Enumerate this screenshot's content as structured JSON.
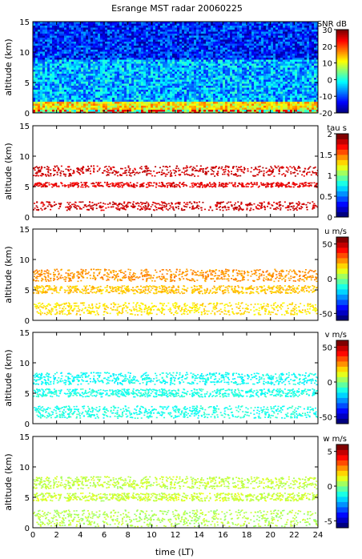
{
  "title": "Esrange MST radar 20060225",
  "xlabel": "time (LT)",
  "chart_data": [
    {
      "type": "heatmap",
      "ylabel": "altitude (km)",
      "xlim": [
        0,
        24
      ],
      "ylim": [
        0,
        15
      ],
      "xticks": [
        0,
        2,
        4,
        6,
        8,
        10,
        12,
        14,
        16,
        18,
        20,
        22,
        24
      ],
      "yticks": [
        0,
        5,
        10,
        15
      ],
      "colorbar": {
        "label": "SNR dB",
        "range": [
          -20,
          30
        ],
        "ticks": [
          30,
          20,
          10,
          0,
          -10,
          -20
        ]
      },
      "layers": [
        {
          "name": "boundary",
          "alt_range": [
            0.3,
            2.0
          ],
          "value": 12
        },
        {
          "name": "mid",
          "alt_range": [
            2.0,
            9.0
          ],
          "value": -5
        },
        {
          "name": "upper",
          "alt_range": [
            9.0,
            15.0
          ],
          "value": -12
        }
      ]
    },
    {
      "type": "heatmap",
      "ylabel": "altitude (km)",
      "xlim": [
        0,
        24
      ],
      "ylim": [
        0,
        15
      ],
      "xticks": [
        0,
        2,
        4,
        6,
        8,
        10,
        12,
        14,
        16,
        18,
        20,
        22,
        24
      ],
      "yticks": [
        0,
        5,
        10,
        15
      ],
      "colorbar": {
        "label": "tau s",
        "range": [
          0,
          2
        ],
        "ticks": [
          2,
          1.5,
          1,
          0.5,
          0
        ]
      },
      "layers": [
        {
          "name": "lower",
          "alt_range": [
            1.2,
            2.6
          ],
          "value": 1.85
        },
        {
          "name": "mid",
          "alt_range": [
            5.0,
            5.8
          ],
          "value": 1.8
        },
        {
          "name": "upper",
          "alt_range": [
            6.8,
            8.5
          ],
          "value": 1.85
        }
      ]
    },
    {
      "type": "heatmap",
      "ylabel": "altitude (km)",
      "xlim": [
        0,
        24
      ],
      "ylim": [
        0,
        15
      ],
      "xticks": [
        0,
        2,
        4,
        6,
        8,
        10,
        12,
        14,
        16,
        18,
        20,
        22,
        24
      ],
      "yticks": [
        0,
        5,
        10,
        15
      ],
      "colorbar": {
        "label": "u m/s",
        "range": [
          -60,
          60
        ],
        "ticks": [
          50,
          0,
          -50
        ]
      },
      "layers": [
        {
          "name": "lower",
          "alt_range": [
            1.0,
            3.0
          ],
          "value": 18
        },
        {
          "name": "mid",
          "alt_range": [
            4.5,
            5.8
          ],
          "value": 22
        },
        {
          "name": "upper",
          "alt_range": [
            6.5,
            8.5
          ],
          "value": 28
        }
      ]
    },
    {
      "type": "heatmap",
      "ylabel": "altitude (km)",
      "xlim": [
        0,
        24
      ],
      "ylim": [
        0,
        15
      ],
      "xticks": [
        0,
        2,
        4,
        6,
        8,
        10,
        12,
        14,
        16,
        18,
        20,
        22,
        24
      ],
      "yticks": [
        0,
        5,
        10,
        15
      ],
      "colorbar": {
        "label": "v m/s",
        "range": [
          -60,
          60
        ],
        "ticks": [
          50,
          0,
          -50
        ]
      },
      "layers": [
        {
          "name": "lower",
          "alt_range": [
            1.0,
            3.0
          ],
          "value": -12
        },
        {
          "name": "mid",
          "alt_range": [
            4.5,
            5.8
          ],
          "value": -12
        },
        {
          "name": "upper",
          "alt_range": [
            6.5,
            8.5
          ],
          "value": -14
        }
      ]
    },
    {
      "type": "heatmap",
      "ylabel": "altitude (km)",
      "xlim": [
        0,
        24
      ],
      "ylim": [
        0,
        15
      ],
      "xticks": [
        0,
        2,
        4,
        6,
        8,
        10,
        12,
        14,
        16,
        18,
        20,
        22,
        24
      ],
      "yticks": [
        0,
        5,
        10,
        15
      ],
      "colorbar": {
        "label": "w m/s",
        "range": [
          -6,
          6
        ],
        "ticks": [
          5,
          0,
          -5
        ]
      },
      "layers": [
        {
          "name": "lower",
          "alt_range": [
            0.3,
            3.0
          ],
          "value": 0.6
        },
        {
          "name": "mid",
          "alt_range": [
            4.5,
            5.8
          ],
          "value": 0.9
        },
        {
          "name": "upper",
          "alt_range": [
            6.5,
            8.5
          ],
          "value": 0.8
        }
      ]
    }
  ],
  "colors": {
    "axis": "#000000",
    "background": "#ffffff"
  }
}
